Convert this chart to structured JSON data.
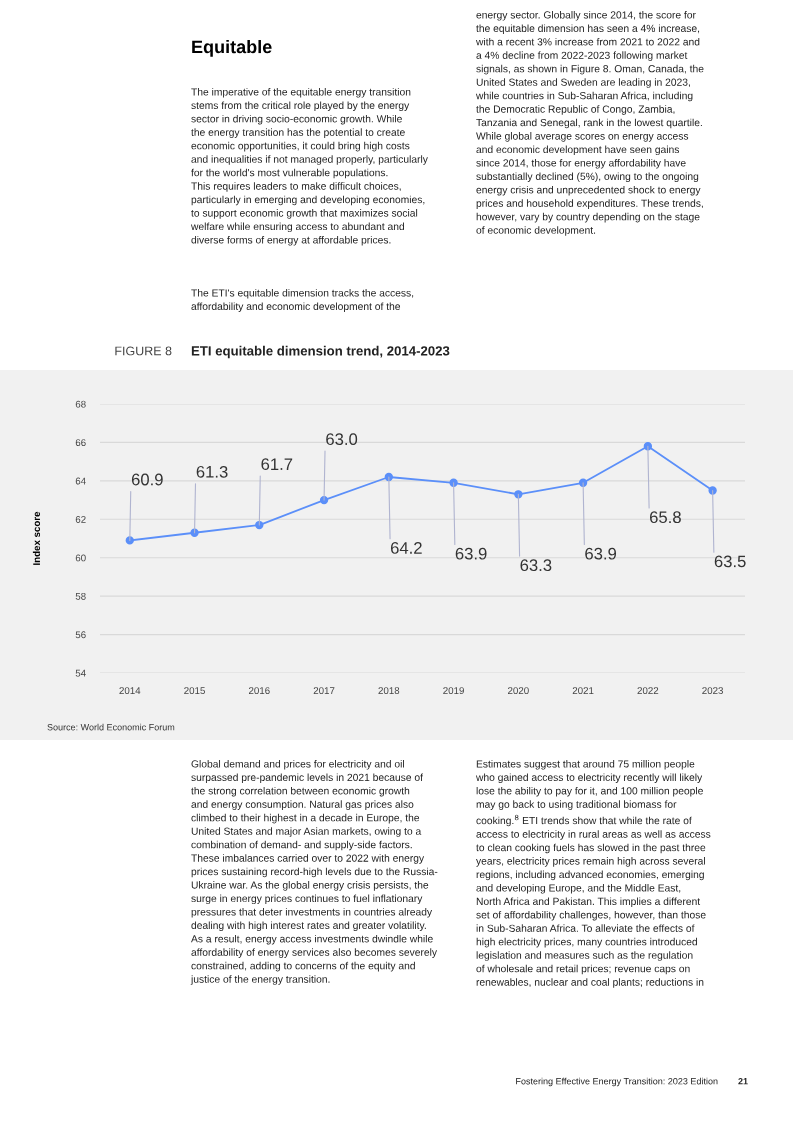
{
  "chart_data": {
    "type": "line",
    "title": "ETI equitable dimension trend, 2014-2023",
    "ylabel": "Index score",
    "categories": [
      "2014",
      "2015",
      "2016",
      "2017",
      "2018",
      "2019",
      "2020",
      "2021",
      "2022",
      "2023"
    ],
    "series": [
      {
        "color": "#5b8ff9",
        "values": [
          60.9,
          61.3,
          61.7,
          63.0,
          64.2,
          63.9,
          63.3,
          63.9,
          65.8,
          63.5
        ],
        "value_labels": [
          "60.9",
          "61.3",
          "61.7",
          "63.0",
          "64.2",
          "63.9",
          "63.3",
          "63.9",
          "65.8",
          "63.5"
        ]
      }
    ],
    "ylim": [
      54,
      68
    ],
    "yticks": [
      54,
      56,
      58,
      60,
      62,
      64,
      66,
      68
    ],
    "grid": "y",
    "marker": "circle",
    "line_style": "solid",
    "annotations": [
      "Equitable",
      "The imperative of the equitable energy transition\nstems from the critical role played by the energy\nsector in driving socio-economic growth. While\nthe energy transition has the potential to create\neconomic opportunities, it could bring high costs\nand inequalities if not managed properly, particularly\nfor the world's most vulnerable populations.\nThis requires leaders to make difficult choices,\nparticularly in emerging and developing economies,\nto support economic growth that maximizes social\nwelfare while ensuring access to abundant and\ndiverse forms of energy at affordable prices.",
      "The ETI's equitable dimension tracks the access,\naffordability and economic development of the",
      "energy sector. Globally since 2014, the score for\nthe equitable dimension has seen a 4% increase,\nwith a recent 3% increase from 2021 to 2022 and\na 4% decline from 2022-2023 following market\nsignals, as shown in Figure 8. Oman, Canada, the\nUnited States and Sweden are leading in 2023,\nwhile countries in Sub-Saharan Africa, including\nthe Democratic Republic of Congo, Zambia,\nTanzania and Senegal, rank in the lowest quartile.\nWhile global average scores on energy access\nand economic development have seen gains\nsince 2014, those for energy affordability have\nsubstantially declined (5%), owing to the ongoing\nenergy crisis and unprecedented shock to energy\nprices and household expenditures. These trends,\nhowever, vary by country depending on the stage\nof economic development.",
      "FIGURE 8",
      "Source: World Economic Forum",
      "Global demand and prices for electricity and oil\nsurpassed pre-pandemic levels in 2021 because of\nthe strong correlation between economic growth\nand energy consumption. Natural gas prices also\nclimbed to their highest in a decade in Europe, the\nUnited States and major Asian markets, owing to a\ncombination of demand- and supply-side factors.\nThese imbalances carried over to 2022 with energy\nprices sustaining record-high levels due to the Russia-\nUkraine war. As the global energy crisis persists, the\nsurge in energy prices continues to fuel inflationary\npressures that deter investments in countries already\ndealing with high interest rates and greater volatility.\nAs a result, energy access investments dwindle while\naffordability of energy services also becomes severely\nconstrained, adding to concerns of the equity and\njustice of the energy transition.",
      "Estimates suggest that around 75 million people\nwho gained access to electricity recently will likely\nlose the ability to pay for it, and 100 million people\nmay go back to using traditional biomass for\ncooking.$^{8}$ ETI trends show that while the rate of\naccess to electricity in rural areas as well as access\nto clean cooking fuels has slowed in the past three\nyears, electricity prices remain high across several\nregions, including advanced economies, emerging\nand developing Europe, and the Middle East,\nNorth Africa and Pakistan. This implies a different\nset of affordability challenges, however, than those\nin Sub-Saharan Africa. To alleviate the effects of\nhigh electricity prices, many countries introduced\nlegislation and measures such as the regulation\nof wholesale and retail prices; revenue caps on\nrenewables, nuclear and coal plants; reductions in",
      "Fostering Effective Energy Transition: 2023 Edition",
      "21"
    ]
  }
}
